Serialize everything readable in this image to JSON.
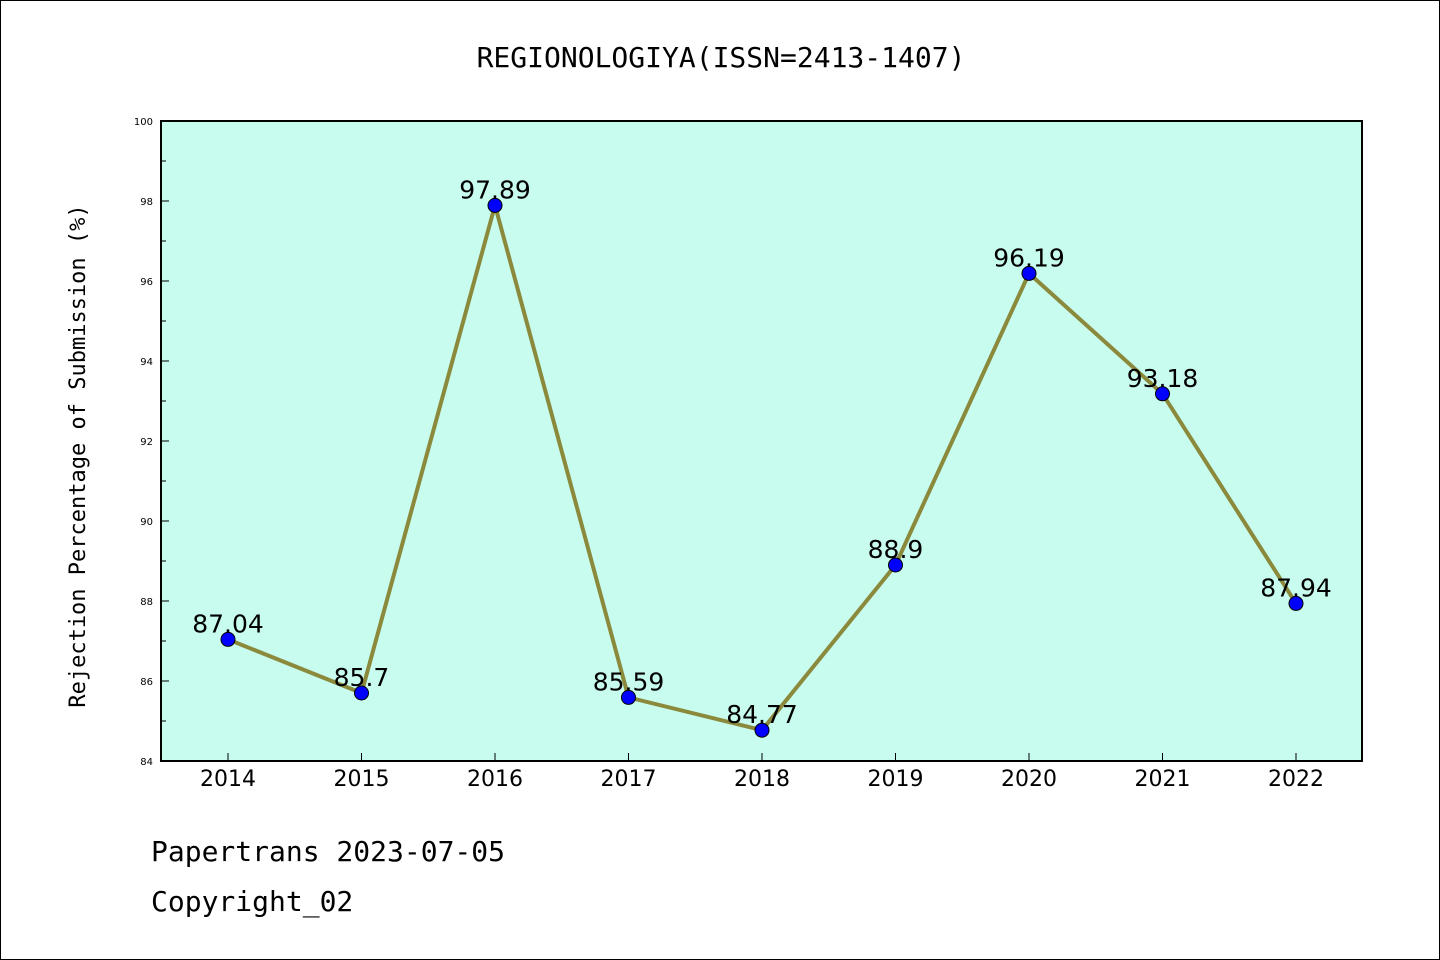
{
  "chart_data": {
    "type": "line",
    "title": "REGIONOLOGIYA(ISSN=2413-1407)",
    "xlabel": "",
    "ylabel": "Rejection Percentage of Submission (%)",
    "categories": [
      "2014",
      "2015",
      "2016",
      "2017",
      "2018",
      "2019",
      "2020",
      "2021",
      "2022"
    ],
    "values": [
      87.04,
      85.7,
      97.89,
      85.59,
      84.77,
      88.9,
      96.19,
      93.18,
      87.94
    ],
    "data_labels": [
      "87.04",
      "85.7",
      "97.89",
      "85.59",
      "84.77",
      "88.9",
      "96.19",
      "93.18",
      "87.94"
    ],
    "ylim": [
      84,
      100
    ],
    "yticks": [
      "84",
      "86",
      "88",
      "90",
      "92",
      "94",
      "96",
      "98",
      "100"
    ],
    "grid": false,
    "legend": "none",
    "colors": {
      "plot_background": "#c8fcee",
      "line": "#8b8a3c",
      "marker": "#0000ff"
    }
  },
  "footer": {
    "line1": "Papertrans 2023-07-05",
    "line2": "Copyright_02"
  }
}
